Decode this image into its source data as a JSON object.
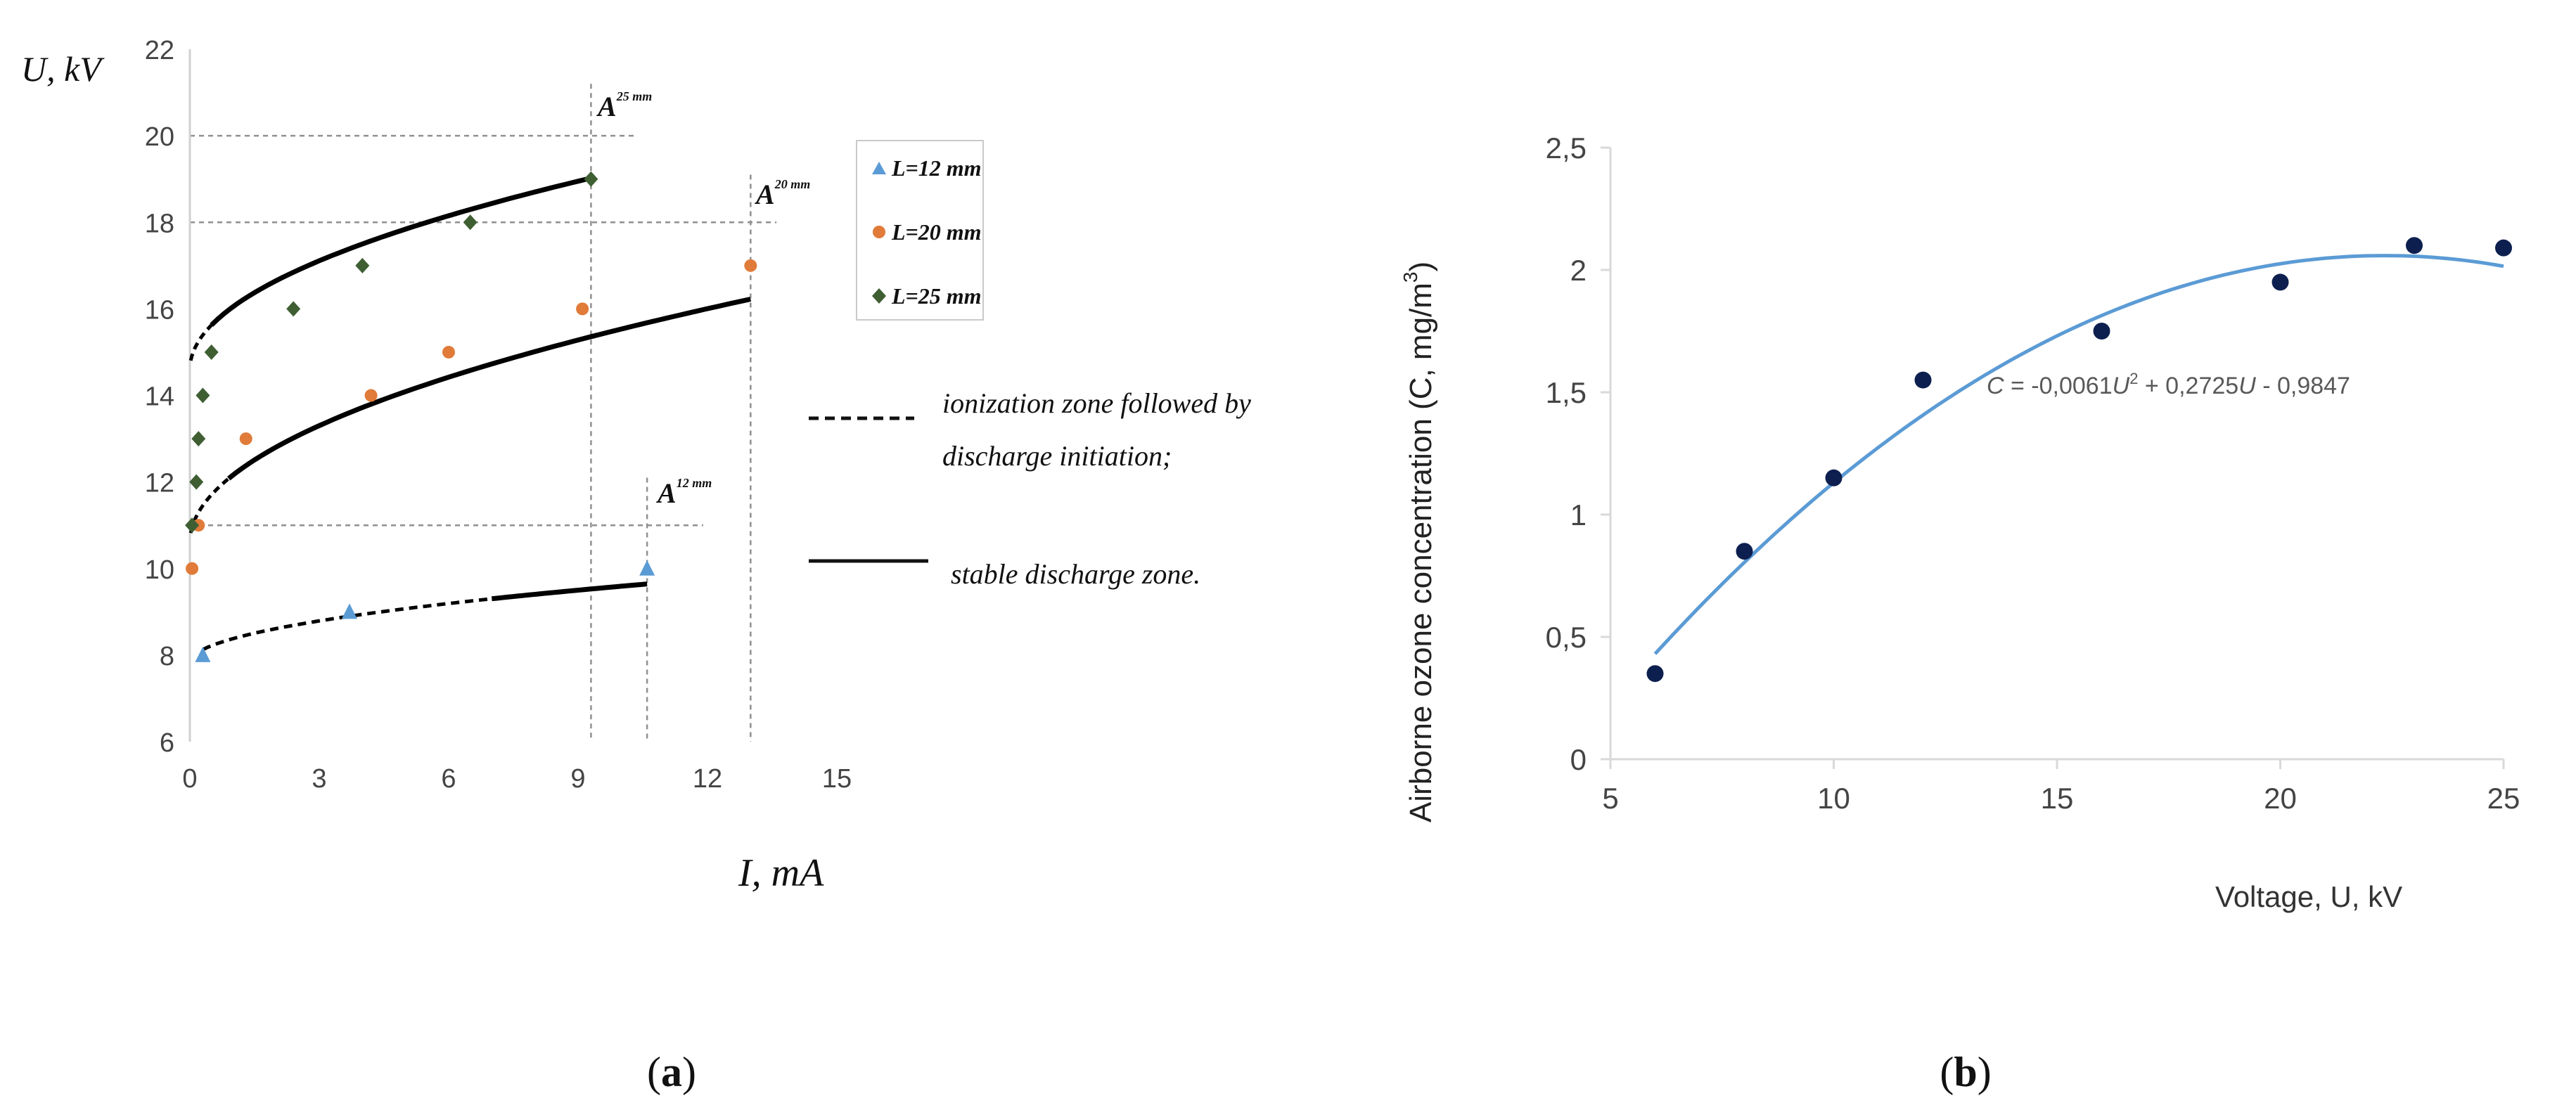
{
  "chart_data": [
    {
      "panel_label": "(a)",
      "type": "scatter",
      "xlabel": "I, mA",
      "ylabel": "U, kV",
      "xlim": [
        0,
        15
      ],
      "ylim": [
        6,
        22
      ],
      "xticks": [
        "0",
        "3",
        "6",
        "9",
        "12",
        "15"
      ],
      "yticks": [
        "6",
        "8",
        "10",
        "12",
        "14",
        "16",
        "18",
        "20",
        "22"
      ],
      "grid": false,
      "legend_position": "right",
      "colors": {
        "L12": "#5b9bd5",
        "L20": "#e07b39",
        "L25": "#3f5f33",
        "curve": "#000000",
        "guide": "#909090"
      },
      "series": [
        {
          "name": "L=12 mm",
          "marker": "triangle",
          "x": [
            0.3,
            3.7,
            10.6
          ],
          "y": [
            8.0,
            9.0,
            10.0
          ]
        },
        {
          "name": "L=20 mm",
          "marker": "circle",
          "x": [
            0.05,
            0.2,
            1.3,
            4.2,
            6.0,
            9.1,
            13.0
          ],
          "y": [
            10.0,
            11.0,
            13.0,
            14.0,
            15.0,
            16.0,
            17.0
          ]
        },
        {
          "name": "L=25 mm",
          "marker": "diamond",
          "x": [
            0.05,
            0.15,
            0.2,
            0.3,
            0.5,
            2.4,
            4.0,
            6.5,
            9.3
          ],
          "y": [
            11.0,
            12.0,
            13.0,
            14.0,
            15.0,
            16.0,
            17.0,
            18.0,
            19.0
          ]
        }
      ],
      "reference_lines": [
        {
          "label": "A",
          "superscript": "25 mm",
          "x": 9.3,
          "y": 20.0
        },
        {
          "label": "A",
          "superscript": "20 mm",
          "x": 13.0,
          "y": 18.0
        },
        {
          "label": "A",
          "superscript": "12 mm",
          "x": 10.6,
          "y": 11.0
        }
      ],
      "line_legend": [
        {
          "style": "dashed",
          "text": "ionization zone followed by discharge initiation;"
        },
        {
          "style": "solid",
          "text": "stable discharge zone."
        }
      ]
    },
    {
      "panel_label": "(b)",
      "type": "scatter",
      "xlabel": "Voltage, U, kV",
      "ylabel": "Airborne ozone concentration (C, mg/m3)",
      "xlim": [
        5,
        25
      ],
      "ylim": [
        0,
        2.5
      ],
      "xticks": [
        "5",
        "10",
        "15",
        "20",
        "25"
      ],
      "yticks": [
        "0",
        "0,5",
        "1",
        "1,5",
        "2",
        "2,5"
      ],
      "grid": false,
      "colors": {
        "points": "#0d1f4f",
        "trend": "#5b9bd5"
      },
      "series": [
        {
          "name": "",
          "x": [
            6,
            8,
            10,
            12,
            16,
            20,
            23,
            25
          ],
          "y": [
            0.35,
            0.85,
            1.15,
            1.55,
            1.75,
            1.95,
            2.1,
            2.09
          ]
        }
      ],
      "trendline": {
        "a": -0.0061,
        "b": 0.2725,
        "c": -0.9847,
        "x_from": 6,
        "x_to": 25,
        "equation": "C = -0,0061U2 + 0,2725U - 0,9847"
      }
    }
  ],
  "labels": {
    "a_xlabel": "I, mA",
    "a_ylabel": "U, kV",
    "a_legend_12": "L=12 mm",
    "a_legend_20": "L=20 mm",
    "a_legend_25": "L=25 mm",
    "a_dash_text_1": "ionization zone followed by",
    "a_dash_text_2": "discharge initiation;",
    "a_solid_text": "stable discharge zone.",
    "a_ref_A": "A",
    "a_ref_25": "25 mm",
    "a_ref_20": "20 mm",
    "a_ref_12": "12 mm",
    "panel_a": "a",
    "panel_b": "b",
    "b_ylabel_main": "Airborne ozone concentration (C, mg/m",
    "b_ylabel_sup": "3",
    "b_ylabel_close": ")",
    "b_xlabel": "Voltage, U, kV",
    "b_eq_c": "C",
    "b_eq_1": " = -0,0061",
    "b_eq_u1": "U",
    "b_eq_sup": "2",
    "b_eq_2": " + 0,2725",
    "b_eq_u2": "U",
    "b_eq_3": " - 0,9847"
  }
}
